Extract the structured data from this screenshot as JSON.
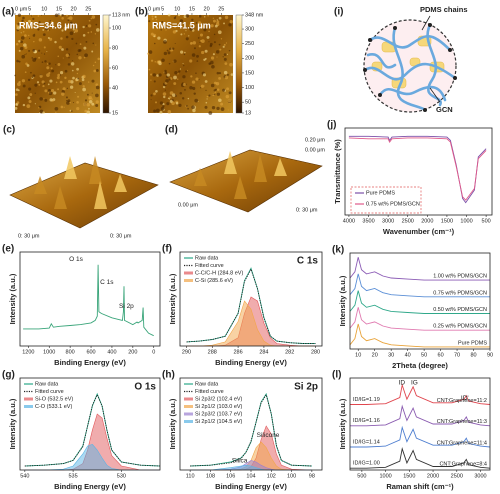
{
  "figure": {
    "afm": [
      {
        "label": "(a)",
        "rms": "RMS=34.6 μm",
        "xlim": [
          0,
          29
        ],
        "xticks": [
          {
            "value": 0,
            "label": "0 μm"
          },
          5,
          10,
          15,
          20,
          25
        ],
        "colorbar": {
          "lim": [
            15,
            113
          ],
          "ticks": [
            {
              "value": 113,
              "label": "113 nm"
            },
            100,
            80,
            60,
            40,
            15
          ]
        }
      },
      {
        "label": "(b)",
        "rms": "RMS=41.5 μm",
        "xlim": [
          0,
          29
        ],
        "xticks": [
          {
            "value": 0,
            "label": "0 μm"
          },
          5,
          10,
          15,
          20,
          25
        ],
        "colorbar": {
          "lim": [
            13,
            348
          ],
          "ticks": [
            {
              "value": 348,
              "label": "348 nm"
            },
            300,
            250,
            200,
            150,
            100,
            50,
            13
          ]
        }
      }
    ],
    "views3d": [
      {
        "label": "(c)",
        "axis_texts": [
          "0: 30 μm",
          "0: 30 μm"
        ]
      },
      {
        "label": "(d)",
        "axis_texts": [
          "0.20 μm",
          "0.00 μm",
          "0.00 μm",
          "0: 30 μm"
        ]
      }
    ],
    "schematic": {
      "label": "(i)",
      "texts": [
        "PDMS chains",
        "GCN"
      ]
    }
  },
  "chart_data": [
    {
      "type": "line",
      "label": "(e)",
      "xlabel": "Binding Energy (eV)",
      "ylabel": "Intensity (a.u.)",
      "xlim": [
        1280,
        -60
      ],
      "xticks": [
        1200,
        1000,
        800,
        600,
        400,
        200,
        0
      ],
      "ylim": [
        0,
        110
      ],
      "x": [
        1250,
        1100,
        1000,
        980,
        960,
        900,
        800,
        700,
        600,
        560,
        540,
        532,
        525,
        500,
        400,
        300,
        290,
        285,
        280,
        200,
        160,
        150,
        110,
        102,
        95,
        50,
        0
      ],
      "series": [
        {
          "color": "#3aa57a",
          "values": [
            20,
            20,
            21,
            26,
            22,
            23,
            24,
            25,
            27,
            30,
            35,
            95,
            40,
            38,
            33,
            30,
            40,
            70,
            30,
            25,
            28,
            27,
            30,
            45,
            22,
            15,
            12
          ]
        }
      ],
      "annotations": [
        "O 1s",
        "C 1s",
        "Si 2p"
      ]
    },
    {
      "type": "line",
      "label": "(f)",
      "title": "C 1s",
      "xlabel": "Binding Energy (eV)",
      "ylabel": "Intensity (a.u.)",
      "xlim": [
        290.5,
        279.5
      ],
      "xticks": [
        290,
        288,
        286,
        284,
        282,
        280
      ],
      "ylim": [
        0,
        115
      ],
      "legend": "upper-left",
      "x": [
        290,
        289,
        288,
        287,
        286,
        285.5,
        285,
        284.5,
        284,
        283.5,
        283,
        282,
        281,
        280
      ],
      "series": [
        {
          "name": "Raw data",
          "color": "#2aa889",
          "values": [
            5,
            6,
            8,
            12,
            40,
            80,
            95,
            70,
            35,
            12,
            6,
            4,
            3,
            3
          ]
        },
        {
          "name": "Fitted curve",
          "color": "#222222",
          "style": "dotted",
          "values": [
            5,
            6,
            8,
            12,
            40,
            79,
            94,
            70,
            34,
            12,
            6,
            4,
            3,
            3
          ]
        },
        {
          "name": "C-C/C-H (284.8 eV)",
          "color": "#e2595c",
          "area": true,
          "values": [
            0,
            0,
            0,
            1,
            10,
            40,
            60,
            55,
            28,
            10,
            3,
            1,
            0,
            0
          ]
        },
        {
          "name": "C-Si (285.6 eV)",
          "color": "#f2a64a",
          "area": true,
          "values": [
            0,
            0,
            1,
            5,
            30,
            55,
            45,
            20,
            6,
            1,
            0,
            0,
            0,
            0
          ]
        }
      ]
    },
    {
      "type": "line",
      "label": "(g)",
      "title": "O 1s",
      "xlabel": "Binding Energy (eV)",
      "ylabel": "Intensity (a.u.)",
      "xlim": [
        540.5,
        526
      ],
      "xticks": [
        540,
        535,
        530
      ],
      "ylim": [
        0,
        115
      ],
      "legend": "upper-left",
      "x": [
        540,
        538,
        536,
        535,
        534,
        533.5,
        533,
        532.5,
        532,
        531.5,
        531,
        530,
        528,
        526
      ],
      "series": [
        {
          "name": "Raw data",
          "color": "#2aa889",
          "values": [
            5,
            6,
            8,
            12,
            30,
            55,
            80,
            95,
            80,
            50,
            25,
            10,
            6,
            5
          ]
        },
        {
          "name": "Fitted curve",
          "color": "#222222",
          "style": "dotted",
          "values": [
            5,
            6,
            8,
            12,
            29,
            55,
            81,
            94,
            80,
            50,
            25,
            10,
            6,
            5
          ]
        },
        {
          "name": "Si-O (532.5 eV)",
          "color": "#e2595c",
          "area": true,
          "values": [
            0,
            0,
            0,
            1,
            8,
            25,
            50,
            70,
            65,
            40,
            18,
            5,
            0,
            0
          ]
        },
        {
          "name": "C-O (533.1 eV)",
          "color": "#5ab4e5",
          "area": true,
          "values": [
            0,
            0,
            1,
            5,
            20,
            30,
            32,
            25,
            15,
            6,
            2,
            0,
            0,
            0
          ]
        }
      ]
    },
    {
      "type": "line",
      "label": "(h)",
      "title": "Si 2p",
      "xlabel": "Binding Energy (eV)",
      "ylabel": "Intensity (a.u.)",
      "xlim": [
        111,
        97
      ],
      "xticks": [
        110,
        108,
        106,
        104,
        102,
        100,
        98
      ],
      "ylim": [
        0,
        115
      ],
      "legend": "upper-left",
      "x": [
        110,
        108,
        106,
        105,
        104.5,
        104,
        103.5,
        103,
        102.5,
        102,
        101.5,
        101,
        100,
        98
      ],
      "series": [
        {
          "name": "Raw data",
          "color": "#2aa889",
          "values": [
            5,
            6,
            10,
            15,
            22,
            35,
            60,
            85,
            95,
            70,
            30,
            12,
            6,
            5
          ]
        },
        {
          "name": "Fitted curve",
          "color": "#222222",
          "style": "dotted",
          "values": [
            5,
            6,
            9,
            14,
            22,
            36,
            60,
            84,
            94,
            70,
            31,
            12,
            6,
            5
          ]
        },
        {
          "name": "Si 2p3/2 (102.4 eV)",
          "color": "#e2595c",
          "area": true,
          "values": [
            0,
            0,
            0,
            0,
            1,
            4,
            15,
            38,
            55,
            45,
            20,
            6,
            1,
            0
          ]
        },
        {
          "name": "Si 2p1/2 (103.0 eV)",
          "color": "#f2a64a",
          "area": true,
          "values": [
            0,
            0,
            0,
            1,
            4,
            12,
            28,
            35,
            28,
            15,
            5,
            1,
            0,
            0
          ]
        },
        {
          "name": "Si 2p3/2 (103.7 eV)",
          "color": "#9b7fd1",
          "area": true,
          "values": [
            0,
            0,
            1,
            4,
            8,
            12,
            10,
            6,
            3,
            1,
            0,
            0,
            0,
            0
          ]
        },
        {
          "name": "Si 2p1/2 (104.5 eV)",
          "color": "#5ab4e5",
          "area": true,
          "values": [
            0,
            0,
            3,
            5,
            6,
            5,
            3,
            1,
            0,
            0,
            0,
            0,
            0,
            0
          ]
        }
      ],
      "annotations": [
        "Silicone",
        "Silica"
      ]
    },
    {
      "type": "line",
      "label": "(j)",
      "xlabel": "Wavenumber (cm⁻¹)",
      "ylabel": "Transmittance (%)",
      "xlim": [
        4100,
        350
      ],
      "xticks": [
        4000,
        3500,
        3000,
        2500,
        2000,
        1500,
        1000,
        500
      ],
      "ylim": [
        0,
        105
      ],
      "legend": "lower-left",
      "x": [
        4000,
        3500,
        3000,
        2963,
        2900,
        2500,
        2000,
        1500,
        1412,
        1260,
        1100,
        1020,
        800,
        700,
        500
      ],
      "series": [
        {
          "name": "Pure PDMS",
          "color": "#7b4fa8",
          "values": [
            95,
            95,
            94,
            90,
            94,
            95,
            95,
            94,
            90,
            60,
            20,
            15,
            30,
            70,
            80
          ]
        },
        {
          "name": "0.75 wt% PDMS/GCN",
          "color": "#e05a8a",
          "values": [
            93,
            92,
            92,
            88,
            92,
            93,
            93,
            92,
            88,
            58,
            22,
            18,
            32,
            68,
            78
          ]
        }
      ]
    },
    {
      "type": "line",
      "label": "(k)",
      "xlabel": "2Theta (degree)",
      "ylabel": "Intensity (a.u.)",
      "legend": "inline",
      "xlim": [
        5,
        90
      ],
      "xticks": [
        10,
        20,
        30,
        40,
        50,
        60,
        70,
        80,
        90
      ],
      "ylim": [
        0,
        46
      ],
      "x": [
        5,
        8,
        10,
        12,
        15,
        20,
        25,
        30,
        40,
        50,
        60,
        70,
        80,
        90
      ],
      "series": [
        {
          "name": "1.00 wt% PDMS/GCN",
          "color": "#8b5bb5",
          "values": [
            34,
            37,
            44,
            38,
            36,
            37,
            35,
            34,
            33.5,
            33,
            33,
            33,
            33,
            33
          ]
        },
        {
          "name": "0.75 wt% PDMS/GCN",
          "color": "#5b8fd6",
          "values": [
            26,
            29,
            36,
            30,
            28,
            29,
            27,
            26,
            25.5,
            25,
            25,
            25,
            25,
            25
          ]
        },
        {
          "name": "0.50 wt% PDMS/GCN",
          "color": "#2fa88a",
          "values": [
            18,
            21,
            28,
            22,
            20,
            21,
            19,
            18,
            17.5,
            17,
            17,
            17,
            17,
            17
          ]
        },
        {
          "name": "0.25 wt% PDMS/GCN",
          "color": "#e07ab0",
          "values": [
            10,
            13,
            20,
            14,
            12,
            13,
            11,
            10,
            9.5,
            9,
            9,
            9,
            9,
            9
          ]
        },
        {
          "name": "Pure PDMS",
          "color": "#e8a33a",
          "values": [
            2,
            5,
            12,
            6,
            4,
            5,
            3,
            2,
            1.5,
            1,
            1,
            1,
            1,
            1
          ]
        }
      ]
    },
    {
      "type": "line",
      "label": "(l)",
      "xlabel": "Raman shift (cm⁻¹)",
      "ylabel": "Intensity (a.u.)",
      "legend": "inline",
      "xlim": [
        250,
        3200
      ],
      "xticks": [
        500,
        1000,
        1500,
        2000,
        2500,
        3000
      ],
      "ylim": [
        0,
        52
      ],
      "x": [
        250,
        600,
        1000,
        1300,
        1350,
        1450,
        1580,
        1650,
        2000,
        2400,
        2650,
        2700,
        2750,
        3000,
        3200
      ],
      "series": [
        {
          "name": "CNT:Graphene=11:2",
          "ratio": "ID/IG=1.19",
          "color": "#e0454d",
          "values": [
            37,
            37,
            37.5,
            41,
            48,
            40,
            47,
            42,
            38,
            38,
            40,
            42,
            39,
            37.5,
            37
          ]
        },
        {
          "name": "CNT:Graphene=11:3",
          "ratio": "ID/IG=1.16",
          "color": "#8a5bb0",
          "values": [
            25,
            25,
            25.5,
            29,
            36,
            28,
            35,
            30,
            26,
            26,
            28,
            30,
            27,
            25.5,
            25
          ]
        },
        {
          "name": "CNT:Graphene=11:4",
          "ratio": "ID/IG=1.14",
          "color": "#4f7fd0",
          "values": [
            13,
            13,
            13.5,
            17,
            24,
            16,
            23,
            18,
            14,
            14,
            16,
            18,
            15,
            13.5,
            13
          ]
        },
        {
          "name": "CNT:Graphene=8:4",
          "ratio": "ID/IG=1.00",
          "color": "#333333",
          "values": [
            1,
            1,
            1.5,
            5,
            12,
            4,
            11,
            6,
            2,
            2,
            4,
            6,
            3,
            1.5,
            1
          ]
        }
      ],
      "annotations": [
        "ID",
        "IG",
        "ID'"
      ]
    }
  ]
}
